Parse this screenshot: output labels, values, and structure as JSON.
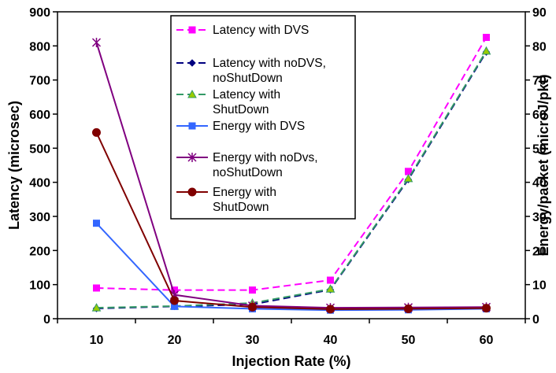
{
  "chart_data": {
    "type": "line",
    "title": "",
    "xlabel": "Injection Rate (%)",
    "ylabel": "Latency (microsec)",
    "y2label": "Energy/packet (microJ/pkt)",
    "x": [
      10,
      20,
      30,
      40,
      50,
      60
    ],
    "ylim": [
      0,
      900
    ],
    "y2lim": [
      0,
      90
    ],
    "yticks": [
      0,
      100,
      200,
      300,
      400,
      500,
      600,
      700,
      800,
      900
    ],
    "y2ticks": [
      0,
      10,
      20,
      30,
      40,
      50,
      60,
      70,
      80,
      90
    ],
    "grid": false,
    "legend_position": "top-center",
    "series": [
      {
        "name": "Latency with DVS",
        "axis": "left",
        "color": "#ff00ff",
        "dash": "dashed",
        "marker": "square",
        "values": [
          90,
          84,
          84,
          113,
          432,
          825
        ]
      },
      {
        "name": "Latency with noDVS, noShutDown",
        "axis": "left",
        "color": "#000080",
        "dash": "dashed",
        "marker": "diamond",
        "values": [
          30,
          36,
          42,
          85,
          408,
          782
        ]
      },
      {
        "name": "Latency with ShutDown",
        "axis": "left",
        "color": "#339966",
        "dash": "dashed",
        "marker": "triangle",
        "values": [
          32,
          37,
          46,
          87,
          411,
          785
        ]
      },
      {
        "name": "Energy with DVS",
        "axis": "right",
        "color": "#3366ff",
        "dash": "solid",
        "marker": "square",
        "values": [
          28,
          3.6,
          2.9,
          2.5,
          2.6,
          2.9
        ]
      },
      {
        "name": "Energy with noDvs, noShutDown",
        "axis": "right",
        "color": "#800080",
        "dash": "solid",
        "marker": "star",
        "values": [
          81,
          7,
          3.8,
          3.2,
          3.3,
          3.4
        ]
      },
      {
        "name": "Energy with ShutDown",
        "axis": "right",
        "color": "#800000",
        "dash": "solid",
        "marker": "circle",
        "values": [
          54.6,
          5.3,
          3.4,
          2.8,
          2.9,
          3.1
        ]
      }
    ],
    "legend_labels": [
      [
        "Latency with DVS"
      ],
      [
        "Latency with noDVS,",
        "noShutDown"
      ],
      [
        "Latency with",
        "ShutDown"
      ],
      [
        "Energy with DVS"
      ],
      [
        "Energy with noDvs,",
        "noShutDown"
      ],
      [
        "Energy with",
        "ShutDown"
      ]
    ]
  }
}
